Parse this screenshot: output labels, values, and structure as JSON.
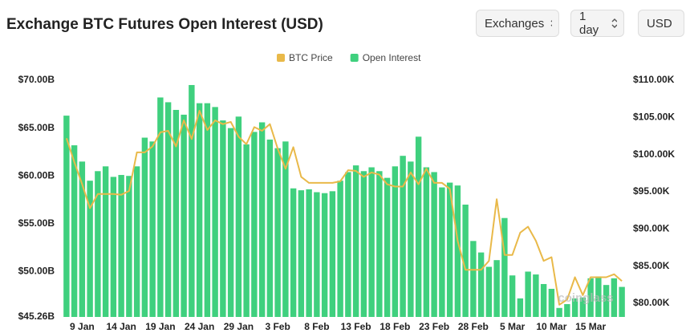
{
  "controls": [
    "Exchanges",
    "1 day",
    "USD"
  ],
  "chart_data": {
    "type": "bar",
    "title": "Exchange BTC Futures Open Interest (USD)",
    "watermark": "coinglass",
    "legend": "top",
    "categories": [
      null,
      null,
      "9 Jan",
      null,
      null,
      null,
      null,
      "14 Jan",
      null,
      null,
      null,
      null,
      "19 Jan",
      null,
      null,
      null,
      null,
      "24 Jan",
      null,
      null,
      null,
      null,
      "29 Jan",
      null,
      null,
      null,
      null,
      "3 Feb",
      null,
      null,
      null,
      null,
      "8 Feb",
      null,
      null,
      null,
      null,
      "13 Feb",
      null,
      null,
      null,
      null,
      "18 Feb",
      null,
      null,
      null,
      null,
      "23 Feb",
      null,
      null,
      null,
      null,
      "28 Feb",
      null,
      null,
      null,
      null,
      "5 Mar",
      null,
      null,
      null,
      null,
      "10 Mar",
      null,
      null,
      null,
      null,
      "15 Mar",
      null,
      null,
      null,
      null
    ],
    "series": [
      {
        "name": "BTC Price",
        "type": "line",
        "axis": "y2",
        "color": "#e9b949",
        "values": [
          102.2,
          99.0,
          96.0,
          92.8,
          94.7,
          94.7,
          94.7,
          94.6,
          95.1,
          100.3,
          100.3,
          101.1,
          103.0,
          103.2,
          101.1,
          104.6,
          102.1,
          105.9,
          103.3,
          104.6,
          104.1,
          104.4,
          102.4,
          101.4,
          103.7,
          103.2,
          104.1,
          100.8,
          98.1,
          101.0,
          97.0,
          96.2,
          96.2,
          96.2,
          96.2,
          96.4,
          97.9,
          97.8,
          97.0,
          97.6,
          97.3,
          96.0,
          95.7,
          95.7,
          97.6,
          96.0,
          98.1,
          96.2,
          96.2,
          95.4,
          88.4,
          84.5,
          84.5,
          84.5,
          85.7,
          94.0,
          86.5,
          86.5,
          89.5,
          90.3,
          88.4,
          85.7,
          86.2,
          79.8,
          80.5,
          83.5,
          81.1,
          83.5,
          83.5,
          83.5,
          83.9,
          83.0
        ]
      },
      {
        "name": "Open Interest",
        "type": "bar",
        "axis": "y",
        "color": "#3fd07e",
        "values": [
          66.3,
          63.2,
          61.5,
          59.5,
          60.5,
          61.0,
          59.9,
          60.1,
          60.0,
          61.0,
          64.0,
          63.6,
          68.2,
          67.7,
          66.9,
          66.4,
          69.5,
          67.6,
          67.6,
          67.2,
          65.8,
          65.0,
          66.2,
          63.3,
          64.6,
          65.6,
          63.8,
          62.9,
          63.6,
          58.7,
          58.5,
          58.6,
          58.3,
          58.2,
          58.4,
          59.5,
          60.4,
          61.1,
          60.5,
          60.9,
          60.5,
          59.8,
          61.0,
          62.1,
          61.5,
          64.1,
          60.9,
          60.4,
          58.8,
          59.3,
          59.0,
          57.0,
          53.2,
          52.0,
          50.5,
          51.2,
          55.6,
          49.6,
          47.2,
          50.0,
          49.7,
          48.7,
          48.2,
          46.2,
          46.6,
          47.2,
          47.3,
          49.3,
          49.5,
          48.6,
          49.3,
          48.4
        ]
      }
    ],
    "ylim": [
      45.26,
      70
    ],
    "yticks": [
      {
        "value": 45.26,
        "label": "$45.26B"
      },
      {
        "value": 50,
        "label": "$50.00B"
      },
      {
        "value": 55,
        "label": "$55.00B"
      },
      {
        "value": 60,
        "label": "$60.00B"
      },
      {
        "value": 65,
        "label": "$65.00B"
      },
      {
        "value": 70,
        "label": "$70.00B"
      }
    ],
    "y2lim": [
      78.16,
      110
    ],
    "y2ticks": [
      {
        "value": 80,
        "label": "$80.00K"
      },
      {
        "value": 85,
        "label": "$85.00K"
      },
      {
        "value": 90,
        "label": "$90.00K"
      },
      {
        "value": 95,
        "label": "$95.00K"
      },
      {
        "value": 100,
        "label": "$100.00K"
      },
      {
        "value": 105,
        "label": "$105.00K"
      },
      {
        "value": 110,
        "label": "$110.00K"
      }
    ],
    "grid": false
  }
}
